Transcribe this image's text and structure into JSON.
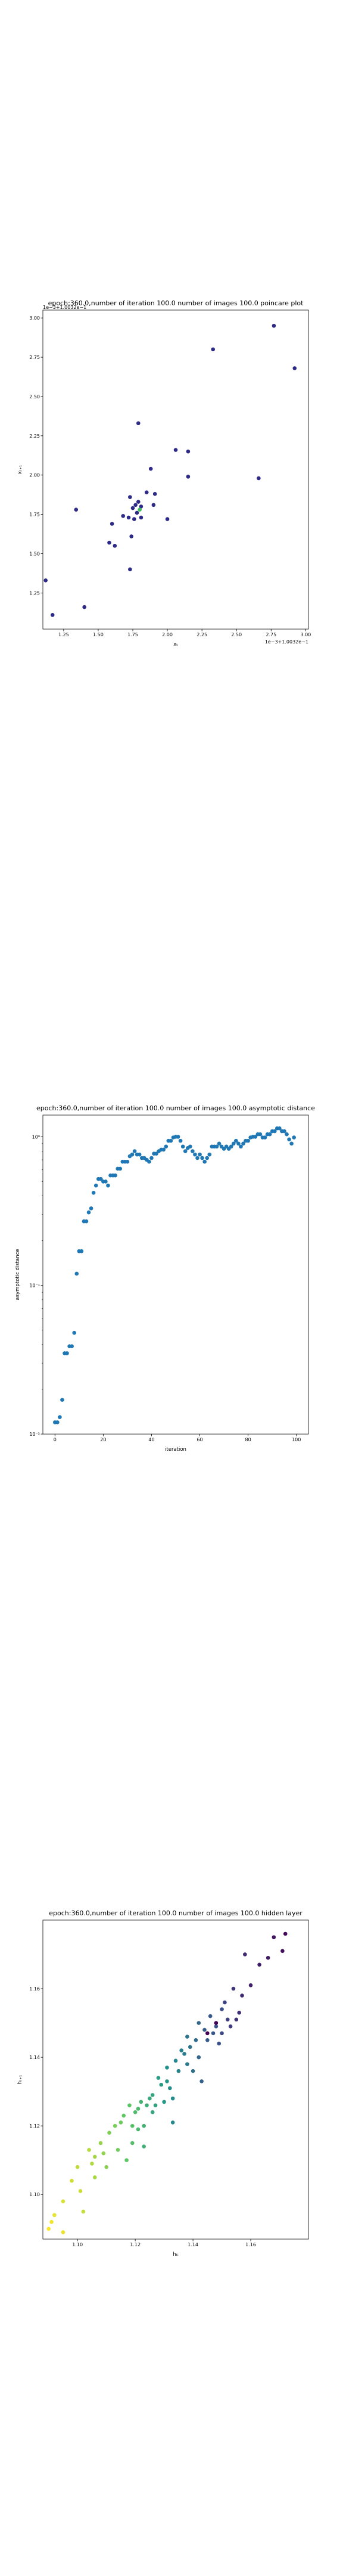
{
  "chart_data": [
    {
      "type": "scatter",
      "title": "epoch:360.0,number of iteration 100.0 number of images 100.0 poincare plot",
      "xlabel": "xₜ",
      "ylabel": "xₜ₊₁",
      "xlim": [
        1.1,
        3.02
      ],
      "ylim": [
        1.02,
        3.05
      ],
      "xticks": [
        "1.25",
        "1.50",
        "1.75",
        "2.00",
        "2.25",
        "2.50",
        "2.75",
        "3.00"
      ],
      "yticks": [
        "1.25",
        "1.50",
        "1.75",
        "2.00",
        "2.25",
        "2.50",
        "2.75",
        "3.00"
      ],
      "x_offset_text": "1e−3+1.0032e−1",
      "y_offset_text": "1e−3+1.0032e−1",
      "grid": false,
      "points": [
        {
          "x": 2.77,
          "y": 2.95
        },
        {
          "x": 2.92,
          "y": 2.68
        },
        {
          "x": 2.33,
          "y": 2.8
        },
        {
          "x": 1.79,
          "y": 2.33
        },
        {
          "x": 2.06,
          "y": 2.16
        },
        {
          "x": 2.15,
          "y": 2.15
        },
        {
          "x": 1.88,
          "y": 2.04
        },
        {
          "x": 2.15,
          "y": 1.99
        },
        {
          "x": 2.66,
          "y": 1.98
        },
        {
          "x": 1.91,
          "y": 1.88
        },
        {
          "x": 1.85,
          "y": 1.89
        },
        {
          "x": 1.73,
          "y": 1.86
        },
        {
          "x": 1.79,
          "y": 1.83
        },
        {
          "x": 1.77,
          "y": 1.81
        },
        {
          "x": 1.81,
          "y": 1.8
        },
        {
          "x": 1.75,
          "y": 1.79
        },
        {
          "x": 1.9,
          "y": 1.81
        },
        {
          "x": 1.78,
          "y": 1.76
        },
        {
          "x": 1.76,
          "y": 1.72
        },
        {
          "x": 1.81,
          "y": 1.73
        },
        {
          "x": 1.72,
          "y": 1.73
        },
        {
          "x": 1.68,
          "y": 1.74
        },
        {
          "x": 1.34,
          "y": 1.78
        },
        {
          "x": 2.0,
          "y": 1.72
        },
        {
          "x": 1.6,
          "y": 1.69
        },
        {
          "x": 1.74,
          "y": 1.61
        },
        {
          "x": 1.58,
          "y": 1.57
        },
        {
          "x": 1.62,
          "y": 1.55
        },
        {
          "x": 1.73,
          "y": 1.4
        },
        {
          "x": 1.12,
          "y": 1.33
        },
        {
          "x": 1.4,
          "y": 1.16
        },
        {
          "x": 1.17,
          "y": 1.11
        },
        {
          "x": 1.8,
          "y": 1.78
        }
      ],
      "point_color": "#2c2a86",
      "highlight_color": "#3fbf5a"
    },
    {
      "type": "scatter",
      "title": "epoch:360.0,number of iteration 100.0  number of images 100.0 asymptotic distance",
      "xlabel": "iteration",
      "ylabel": "asymptotic distance",
      "xlim": [
        -5,
        105
      ],
      "y_scale": "log",
      "ylim": [
        0.01,
        1.4
      ],
      "xticks": [
        "0",
        "20",
        "40",
        "60",
        "80",
        "100"
      ],
      "yticks": [
        "10⁻²",
        "10⁻¹",
        "10⁰"
      ],
      "grid": false,
      "point_color": "#1f77b4",
      "x": [
        0,
        1,
        2,
        3,
        4,
        5,
        6,
        7,
        8,
        9,
        10,
        11,
        12,
        13,
        14,
        15,
        16,
        17,
        18,
        19,
        20,
        21,
        22,
        23,
        24,
        25,
        26,
        27,
        28,
        29,
        30,
        31,
        32,
        33,
        34,
        35,
        36,
        37,
        38,
        39,
        40,
        41,
        42,
        43,
        44,
        45,
        46,
        47,
        48,
        49,
        50,
        51,
        52,
        53,
        54,
        55,
        56,
        57,
        58,
        59,
        60,
        61,
        62,
        63,
        64,
        65,
        66,
        67,
        68,
        69,
        70,
        71,
        72,
        73,
        74,
        75,
        76,
        77,
        78,
        79,
        80,
        81,
        82,
        83,
        84,
        85,
        86,
        87,
        88,
        89,
        90,
        91,
        92,
        93,
        94,
        95,
        96,
        97,
        98,
        99
      ],
      "y": [
        0.012,
        0.012,
        0.013,
        0.017,
        0.035,
        0.035,
        0.039,
        0.039,
        0.048,
        0.12,
        0.17,
        0.17,
        0.27,
        0.27,
        0.31,
        0.33,
        0.42,
        0.47,
        0.52,
        0.52,
        0.5,
        0.5,
        0.47,
        0.55,
        0.55,
        0.55,
        0.61,
        0.61,
        0.68,
        0.68,
        0.68,
        0.74,
        0.76,
        0.8,
        0.76,
        0.76,
        0.72,
        0.72,
        0.7,
        0.68,
        0.72,
        0.77,
        0.77,
        0.8,
        0.82,
        0.82,
        0.86,
        0.94,
        0.94,
        0.99,
        1.0,
        1.0,
        0.94,
        0.86,
        0.8,
        0.84,
        0.86,
        0.8,
        0.76,
        0.72,
        0.76,
        0.72,
        0.68,
        0.72,
        0.76,
        0.86,
        0.86,
        0.86,
        0.9,
        0.86,
        0.83,
        0.86,
        0.83,
        0.86,
        0.9,
        0.94,
        0.9,
        0.86,
        0.9,
        0.94,
        0.94,
        0.99,
        1.0,
        1.0,
        1.04,
        1.04,
        0.99,
        0.99,
        1.04,
        1.04,
        1.09,
        1.09,
        1.14,
        1.14,
        1.09,
        1.09,
        1.04,
        0.96,
        0.9,
        0.99
      ]
    },
    {
      "type": "scatter",
      "title": "epoch:360.0,number of iteration 100.0  number of images 100.0 hidden layer",
      "xlabel": "hₜᵢ",
      "ylabel": "hₜ₊₁",
      "xlim": [
        1.088,
        1.18
      ],
      "ylim": [
        1.087,
        1.18
      ],
      "xticks": [
        "1.10",
        "1.12",
        "1.14",
        "1.16"
      ],
      "yticks": [
        "1.10",
        "1.12",
        "1.14",
        "1.16"
      ],
      "grid": false,
      "colormap": "viridis",
      "points": [
        {
          "x": 1.09,
          "y": 1.09,
          "c": 0.0
        },
        {
          "x": 1.091,
          "y": 1.092,
          "c": 0.02
        },
        {
          "x": 1.095,
          "y": 1.089,
          "c": 0.03
        },
        {
          "x": 1.092,
          "y": 1.094,
          "c": 0.04
        },
        {
          "x": 1.095,
          "y": 1.098,
          "c": 0.06
        },
        {
          "x": 1.098,
          "y": 1.104,
          "c": 0.07
        },
        {
          "x": 1.101,
          "y": 1.101,
          "c": 0.08
        },
        {
          "x": 1.102,
          "y": 1.095,
          "c": 0.09
        },
        {
          "x": 1.1,
          "y": 1.108,
          "c": 0.1
        },
        {
          "x": 1.104,
          "y": 1.113,
          "c": 0.11
        },
        {
          "x": 1.105,
          "y": 1.109,
          "c": 0.12
        },
        {
          "x": 1.106,
          "y": 1.105,
          "c": 0.13
        },
        {
          "x": 1.106,
          "y": 1.111,
          "c": 0.14
        },
        {
          "x": 1.108,
          "y": 1.115,
          "c": 0.16
        },
        {
          "x": 1.109,
          "y": 1.112,
          "c": 0.17
        },
        {
          "x": 1.11,
          "y": 1.108,
          "c": 0.18
        },
        {
          "x": 1.111,
          "y": 1.118,
          "c": 0.2
        },
        {
          "x": 1.113,
          "y": 1.12,
          "c": 0.21
        },
        {
          "x": 1.114,
          "y": 1.113,
          "c": 0.22
        },
        {
          "x": 1.115,
          "y": 1.121,
          "c": 0.23
        },
        {
          "x": 1.116,
          "y": 1.123,
          "c": 0.25
        },
        {
          "x": 1.117,
          "y": 1.11,
          "c": 0.26
        },
        {
          "x": 1.118,
          "y": 1.126,
          "c": 0.27
        },
        {
          "x": 1.119,
          "y": 1.12,
          "c": 0.28
        },
        {
          "x": 1.119,
          "y": 1.115,
          "c": 0.3
        },
        {
          "x": 1.12,
          "y": 1.124,
          "c": 0.31
        },
        {
          "x": 1.121,
          "y": 1.125,
          "c": 0.32
        },
        {
          "x": 1.121,
          "y": 1.119,
          "c": 0.33
        },
        {
          "x": 1.122,
          "y": 1.127,
          "c": 0.35
        },
        {
          "x": 1.123,
          "y": 1.12,
          "c": 0.36
        },
        {
          "x": 1.123,
          "y": 1.114,
          "c": 0.37
        },
        {
          "x": 1.124,
          "y": 1.126,
          "c": 0.38
        },
        {
          "x": 1.125,
          "y": 1.128,
          "c": 0.4
        },
        {
          "x": 1.126,
          "y": 1.124,
          "c": 0.41
        },
        {
          "x": 1.126,
          "y": 1.129,
          "c": 0.42
        },
        {
          "x": 1.127,
          "y": 1.126,
          "c": 0.43
        },
        {
          "x": 1.128,
          "y": 1.134,
          "c": 0.45
        },
        {
          "x": 1.129,
          "y": 1.132,
          "c": 0.46
        },
        {
          "x": 1.13,
          "y": 1.127,
          "c": 0.47
        },
        {
          "x": 1.131,
          "y": 1.133,
          "c": 0.48
        },
        {
          "x": 1.131,
          "y": 1.137,
          "c": 0.5
        },
        {
          "x": 1.132,
          "y": 1.131,
          "c": 0.51
        },
        {
          "x": 1.133,
          "y": 1.128,
          "c": 0.52
        },
        {
          "x": 1.133,
          "y": 1.121,
          "c": 0.53
        },
        {
          "x": 1.134,
          "y": 1.139,
          "c": 0.55
        },
        {
          "x": 1.135,
          "y": 1.136,
          "c": 0.56
        },
        {
          "x": 1.136,
          "y": 1.142,
          "c": 0.57
        },
        {
          "x": 1.137,
          "y": 1.141,
          "c": 0.58
        },
        {
          "x": 1.138,
          "y": 1.138,
          "c": 0.6
        },
        {
          "x": 1.138,
          "y": 1.146,
          "c": 0.61
        },
        {
          "x": 1.139,
          "y": 1.143,
          "c": 0.62
        },
        {
          "x": 1.14,
          "y": 1.136,
          "c": 0.63
        },
        {
          "x": 1.141,
          "y": 1.145,
          "c": 0.65
        },
        {
          "x": 1.142,
          "y": 1.15,
          "c": 0.66
        },
        {
          "x": 1.142,
          "y": 1.14,
          "c": 0.67
        },
        {
          "x": 1.143,
          "y": 1.133,
          "c": 0.68
        },
        {
          "x": 1.144,
          "y": 1.148,
          "c": 0.7
        },
        {
          "x": 1.145,
          "y": 1.145,
          "c": 0.71
        },
        {
          "x": 1.146,
          "y": 1.152,
          "c": 0.72
        },
        {
          "x": 1.147,
          "y": 1.147,
          "c": 0.73
        },
        {
          "x": 1.148,
          "y": 1.149,
          "c": 0.75
        },
        {
          "x": 1.149,
          "y": 1.144,
          "c": 0.76
        },
        {
          "x": 1.15,
          "y": 1.154,
          "c": 0.77
        },
        {
          "x": 1.15,
          "y": 1.147,
          "c": 0.78
        },
        {
          "x": 1.151,
          "y": 1.156,
          "c": 0.8
        },
        {
          "x": 1.152,
          "y": 1.151,
          "c": 0.81
        },
        {
          "x": 1.153,
          "y": 1.149,
          "c": 0.82
        },
        {
          "x": 1.154,
          "y": 1.16,
          "c": 0.83
        },
        {
          "x": 1.155,
          "y": 1.151,
          "c": 0.85
        },
        {
          "x": 1.156,
          "y": 1.153,
          "c": 0.86
        },
        {
          "x": 1.157,
          "y": 1.158,
          "c": 0.87
        },
        {
          "x": 1.158,
          "y": 1.17,
          "c": 0.88
        },
        {
          "x": 1.16,
          "y": 1.161,
          "c": 0.9
        },
        {
          "x": 1.163,
          "y": 1.167,
          "c": 0.91
        },
        {
          "x": 1.166,
          "y": 1.169,
          "c": 0.92
        },
        {
          "x": 1.168,
          "y": 1.175,
          "c": 0.94
        },
        {
          "x": 1.171,
          "y": 1.171,
          "c": 0.96
        },
        {
          "x": 1.172,
          "y": 1.176,
          "c": 0.98
        },
        {
          "x": 1.148,
          "y": 1.15,
          "c": 0.99
        },
        {
          "x": 1.145,
          "y": 1.147,
          "c": 1.0
        }
      ]
    }
  ]
}
